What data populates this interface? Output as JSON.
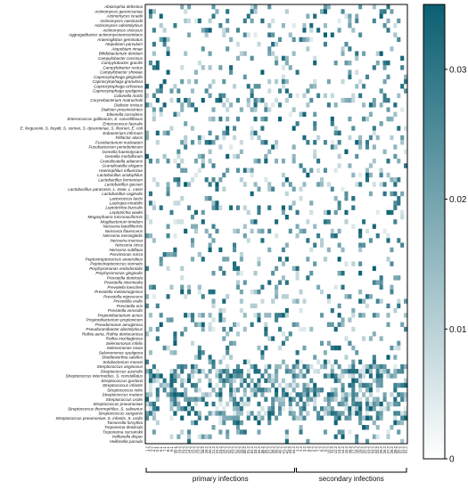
{
  "colors": {
    "high": "#0b5f72",
    "low": "#ffffff",
    "frame": "#000000"
  },
  "chart_data": {
    "type": "heatmap",
    "title": "",
    "xlabel": "",
    "ylabel": "",
    "rows": [
      "Abiotrophia defectiva",
      "Actinomyces gerencseriae",
      "Actinomyces israelii",
      "Actinomyces naeslundii",
      "Actinomyces odontolyticus",
      "Actinomyces viscosus",
      "Aggregatibacter actinomycetemcomitans",
      "Anaeroglobus geminatus",
      "Atopobium parvulum",
      "Atopobium rimae",
      "Bifidobacterium dentium",
      "Campylobacter concisus",
      "Campylobacter gracilis",
      "Campylobacter rectus",
      "Campylobacter showae",
      "Capnocytophaga gingivalis",
      "Capnocytophaga granulosa",
      "Capnocytophaga ochracea",
      "Capnocytophaga sputigena",
      "Catonella morbi",
      "Corynebacterium matruchotii",
      "Dialister invisus",
      "Dialister pneumosintes",
      "Eikenella corrodens",
      "Enterococcus gallinarum, E. casseliflavus",
      "Enterococcus faecalis",
      "E. fergusonii, S. boydii, S. sonnei, S. dysenteriae, S. flexneri, E. coli",
      "Eubacterium infirmum",
      "Filifactor alocis",
      "Fusobacterium nucleatum",
      "Fusobacterium periodonticum",
      "Gemella haemolysans",
      "Gemella morbillorum",
      "Granulicatella adiacens",
      "Granulicatella elegans",
      "Haemophilus influenzae",
      "Lactobacillus acidophilus",
      "Lactobacillus fermentum",
      "Lactobacillus gasseri",
      "Lactobacillus paracasei, L. zeae, L. casei",
      "Lactobacillus vaginalis",
      "Lactococcus lactis",
      "Lautropia mirabilis",
      "Leptotrichia buccalis",
      "Leptotrichia wadei",
      "Megasphaera micronuciformis",
      "Mogibacterium timidum",
      "Neisseria bacilliformis",
      "Neisseria flavescens",
      "Neisseria meningitidis",
      "Neisseria mucosa",
      "Neisseria sicca",
      "Neisseria subflava",
      "Parvimonas micra",
      "Peptostreptococcus anaerobius",
      "Peptostreptococcus stomatis",
      "Porphyromonas endodontalis",
      "Porphyromonas gingivalis",
      "Prevotella denticola",
      "Prevotella intermedia",
      "Prevotella loescheii",
      "Prevotella melaninogenica",
      "Prevotella nigrescens",
      "Prevotella oralis",
      "Prevotella oris",
      "Prevotella veroralis",
      "Propionibacterium acnes",
      "Propionibacterium propionicum",
      "Pseudomonas aeruginosa",
      "Pseudoramibacter alactolyticus",
      "Rothia aeria, Rothia dentocariosa",
      "Rothia mucilaginosa",
      "Selenomonas infelix",
      "Selenomonas noxia",
      "Selenomonas sputigena",
      "Shuttleworthia satelles",
      "Solobacterium moorei",
      "Streptococcus anginosus",
      "Streptococcus australis",
      "Streptococcus intermedius, S. constellatus",
      "Streptococcus gordonii",
      "Streptococcus infantis",
      "Streptococcus mitis",
      "Streptococcus mutans",
      "Streptococcus oralis",
      "Streptococcus pneumoniae",
      "Streptococcus thermophilus, S. salivarius",
      "Streptococcus sanguinis",
      "Streptococcus pneumoniae, S. infantis, S. oralis",
      "Tannerella forsythia",
      "Treponema denticola",
      "Treponema socranskii",
      "Veillonella dispar",
      "Veillonella parvula"
    ],
    "columns": [
      "1.2",
      "3.2",
      "4.1",
      "5.1",
      "6.1",
      "7.1",
      "8.1",
      "9.1",
      "10.1",
      "11.2",
      "12.2",
      "13.2",
      "14.2",
      "15.2",
      "16.2",
      "17.2",
      "18.2",
      "19.2",
      "20.2",
      "21.2",
      "22.2",
      "23.2",
      "24.2",
      "25.2",
      "26.2",
      "27.2",
      "28.2",
      "29.2",
      "30.2",
      "31.2",
      "32.2",
      "33.2",
      "34.2",
      "35.2",
      "36.2",
      "37.2",
      "38.2",
      "39.2",
      "40.2",
      "41.2",
      "42.2",
      "43.2",
      "44.2",
      "1.2",
      "2.2",
      "3.2",
      "4.2",
      "5.2",
      "6.2",
      "7.2",
      "8.2",
      "9.2",
      "10.2",
      "11.2",
      "12.2",
      "13.2",
      "14.2",
      "15.2",
      "16.2",
      "17.2",
      "18.2",
      "19.2",
      "20.2",
      "21.2",
      "22.2",
      "23.2",
      "24.2",
      "25.2",
      "26.2",
      "27.2",
      "28.2",
      "29.2",
      "30.2",
      "31.2",
      "32.2"
    ],
    "groups": [
      {
        "label": "primary infections",
        "start": 0,
        "end": 42
      },
      {
        "label": "secondary infections",
        "start": 43,
        "end": 74
      }
    ],
    "colorbar": {
      "min": 0,
      "max": 0.035,
      "ticks": [
        0,
        0.01,
        0.02,
        0.03
      ],
      "tick_labels": [
        "0",
        "0.01",
        "0.02",
        "0.03"
      ]
    },
    "values_note_source": "cell values estimated from image"
  }
}
